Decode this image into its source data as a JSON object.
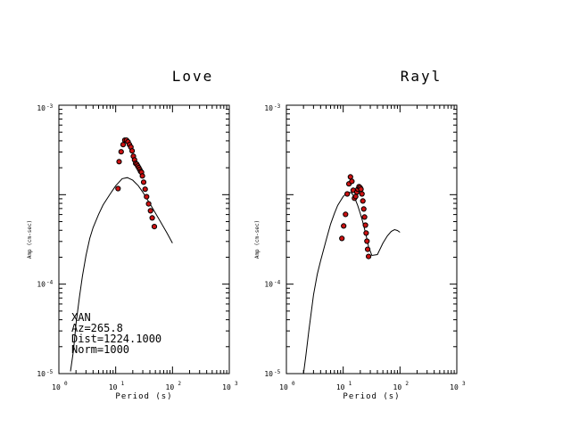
{
  "chart_data": [
    {
      "type": "scatter",
      "title": "Love",
      "xlabel": "Period (s)",
      "ylabel": "Amp (cm-sec)",
      "x_scale": "log",
      "y_scale": "log",
      "xlim": [
        1,
        1000
      ],
      "ylim": [
        1e-05,
        0.01
      ],
      "x_ticks": [
        "10",
        "10",
        "10",
        "10"
      ],
      "x_tick_exps": [
        "0",
        "1",
        "2",
        "3"
      ],
      "y_ticks": [
        "10",
        "10",
        "10"
      ],
      "y_tick_exps": [
        "-3",
        "-4",
        "-5"
      ],
      "grid": false,
      "annotation": [
        "XAN",
        "Az=265.8",
        "Dist=1224.1000",
        "Norm=1000"
      ],
      "series": [
        {
          "kind": "line",
          "x": [
            1.6,
            1.8,
            2.0,
            2.3,
            2.6,
            3.0,
            3.5,
            4.0,
            5.0,
            6.0,
            8.0,
            10,
            13,
            16,
            20,
            25,
            30,
            40,
            60,
            80,
            100
          ],
          "y": [
            1.06e-05,
            1.8e-05,
            3.6e-05,
            7.13e-05,
            0.000123,
            0.000209,
            0.000324,
            0.000427,
            0.000603,
            0.000766,
            0.00102,
            0.00126,
            0.00151,
            0.00155,
            0.00145,
            0.00126,
            0.00107,
            0.000794,
            0.000512,
            0.000372,
            0.000288
          ]
        },
        {
          "kind": "points",
          "x": [
            11.0,
            11.5,
            12.5,
            13.5,
            14.5,
            15.5,
            16.5,
            17.5,
            18.5,
            19.5,
            20.5,
            21.5,
            22.5,
            23.5,
            24.5,
            25.5,
            26.5,
            27.5,
            28.5,
            29.5,
            31,
            33,
            35,
            38,
            41,
            44,
            48
          ],
          "y": [
            0.00117,
            0.00234,
            0.00302,
            0.00363,
            0.00407,
            0.00407,
            0.00389,
            0.00363,
            0.0034,
            0.00309,
            0.00269,
            0.00245,
            0.00224,
            0.00219,
            0.00209,
            0.002,
            0.00191,
            0.00182,
            0.00178,
            0.00162,
            0.00138,
            0.00115,
            0.00095,
            0.00079,
            0.00066,
            0.00055,
            0.00044
          ]
        }
      ]
    },
    {
      "type": "scatter",
      "title": "Rayl",
      "xlabel": "Period (s)",
      "ylabel": "Amp (cm-sec)",
      "x_scale": "log",
      "y_scale": "log",
      "xlim": [
        1,
        1000
      ],
      "ylim": [
        1e-05,
        0.01
      ],
      "x_ticks": [
        "10",
        "10",
        "10",
        "10"
      ],
      "x_tick_exps": [
        "0",
        "1",
        "2",
        "3"
      ],
      "y_ticks": [
        "10",
        "10",
        "10"
      ],
      "y_tick_exps": [
        "-3",
        "-4",
        "-5"
      ],
      "grid": false,
      "series": [
        {
          "kind": "line",
          "x": [
            2.0,
            2.2,
            2.5,
            3.0,
            3.5,
            4.0,
            5.0,
            6.0,
            7.0,
            8.0,
            10,
            12,
            14,
            16,
            18,
            20,
            22,
            25,
            28,
            32,
            40,
            50,
            60,
            70,
            80,
            90,
            100
          ],
          "y": [
            1e-05,
            1.58e-05,
            3.09e-05,
            7.59e-05,
            0.000129,
            0.000182,
            0.000309,
            0.000468,
            0.000617,
            0.000759,
            0.000955,
            0.00107,
            0.00105,
            0.000912,
            0.00076,
            0.000617,
            0.0005,
            0.000363,
            0.000263,
            0.000209,
            0.000214,
            0.000288,
            0.000347,
            0.000389,
            0.000407,
            0.000398,
            0.00038
          ]
        },
        {
          "kind": "points",
          "x": [
            9.5,
            10.2,
            11.0,
            11.8,
            12.6,
            13.4,
            14.2,
            15.0,
            15.8,
            16.6,
            17.4,
            18.2,
            19.0,
            19.8,
            20.6,
            21.4,
            22.2,
            23.0,
            23.8,
            24.6,
            25.4,
            26.2,
            27.0,
            28.0
          ],
          "y": [
            0.000324,
            0.000447,
            0.000603,
            0.00102,
            0.00132,
            0.00158,
            0.00141,
            0.00112,
            0.000912,
            0.000955,
            0.00107,
            0.00115,
            0.00123,
            0.0012,
            0.00115,
            0.00102,
            0.000851,
            0.000692,
            0.000562,
            0.000457,
            0.000372,
            0.000302,
            0.000245,
            0.000204
          ]
        }
      ]
    }
  ]
}
